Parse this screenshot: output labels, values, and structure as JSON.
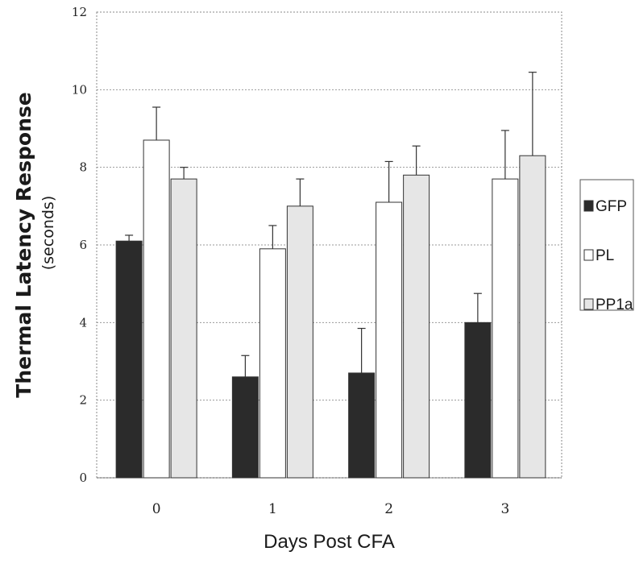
{
  "chart_data": {
    "type": "bar",
    "categories": [
      "0",
      "1",
      "2",
      "3"
    ],
    "series": [
      {
        "name": "GFP",
        "values": [
          6.1,
          2.6,
          2.7,
          4.0
        ],
        "errors": [
          0.15,
          0.55,
          1.15,
          0.75
        ],
        "color": "#2b2b2b"
      },
      {
        "name": "PL",
        "values": [
          8.7,
          5.9,
          7.1,
          7.7
        ],
        "errors": [
          0.85,
          0.6,
          1.05,
          1.25
        ],
        "color": "#ffffff"
      },
      {
        "name": "PP1a",
        "values": [
          7.7,
          7.0,
          7.8,
          8.3
        ],
        "errors": [
          0.3,
          0.7,
          0.75,
          2.15
        ],
        "color": "#e6e6e6"
      }
    ],
    "xlabel": "Days Post CFA",
    "ylabel": "Thermal Latency Response",
    "ylabel_sub": "(seconds)",
    "ylim": [
      0,
      12
    ],
    "yticks": [
      0,
      2,
      4,
      6,
      8,
      10,
      12
    ],
    "grid": true,
    "legend_position": "right"
  }
}
